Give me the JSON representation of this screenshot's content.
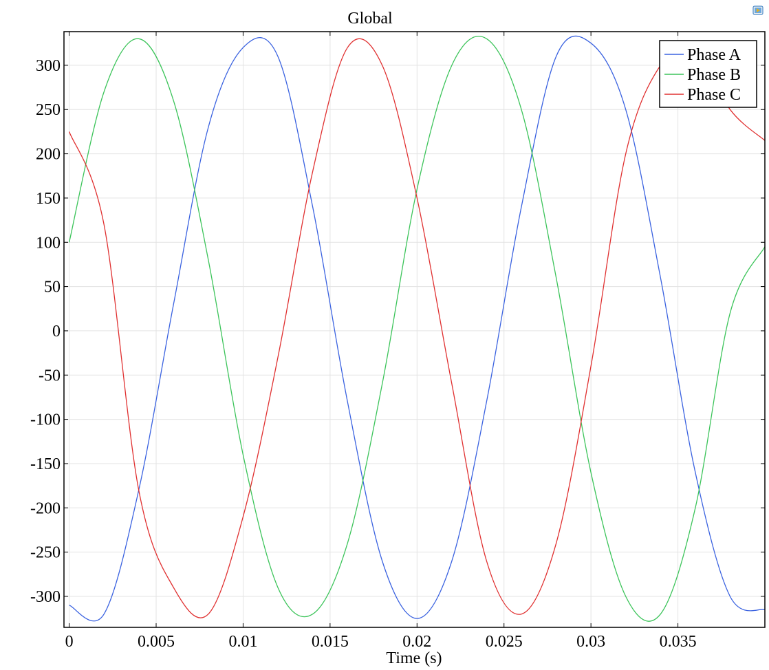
{
  "chart_data": {
    "type": "line",
    "title": "Global",
    "xlabel": "Time (s)",
    "ylabel": "",
    "xlim": [
      -0.0003,
      0.04
    ],
    "ylim": [
      -335,
      338
    ],
    "xticks": [
      0,
      0.005,
      0.01,
      0.015,
      0.02,
      0.025,
      0.03,
      0.035
    ],
    "xtick_labels": [
      "0",
      "0.005",
      "0.01",
      "0.015",
      "0.02",
      "0.025",
      "0.03",
      "0.035"
    ],
    "yticks": [
      300,
      250,
      200,
      150,
      100,
      50,
      0,
      -50,
      -100,
      -150,
      -200,
      -250,
      -300
    ],
    "ytick_labels": [
      "300",
      "250",
      "200",
      "150",
      "100",
      "50",
      "0",
      "-50",
      "-100",
      "-150",
      "-200",
      "-250",
      "-300"
    ],
    "grid": true,
    "legend_position": "top-right",
    "x": [
      0,
      0.002,
      0.004,
      0.006,
      0.008,
      0.01,
      0.012,
      0.014,
      0.016,
      0.018,
      0.02,
      0.022,
      0.024,
      0.026,
      0.028,
      0.03,
      0.032,
      0.034,
      0.036,
      0.038,
      0.04
    ],
    "series": [
      {
        "name": "Phase A",
        "color": "#3a62e0",
        "values": [
          -310,
          -320,
          -180,
          30,
          230,
          320,
          310,
          140,
          -80,
          -260,
          -325,
          -260,
          -80,
          140,
          310,
          325,
          250,
          60,
          -160,
          -300,
          -315
        ]
      },
      {
        "name": "Phase B",
        "color": "#3cc45a",
        "values": [
          100,
          270,
          330,
          260,
          80,
          -140,
          -290,
          -320,
          -240,
          -60,
          160,
          300,
          330,
          250,
          60,
          -160,
          -300,
          -320,
          -200,
          20,
          95
        ]
      },
      {
        "name": "Phase C",
        "color": "#e03030",
        "values": [
          225,
          120,
          -180,
          -290,
          -320,
          -210,
          -30,
          180,
          320,
          300,
          150,
          -60,
          -260,
          -320,
          -240,
          -40,
          200,
          300,
          320,
          250,
          215
        ]
      }
    ]
  },
  "ui": {
    "export_icon": "export-image-icon"
  }
}
